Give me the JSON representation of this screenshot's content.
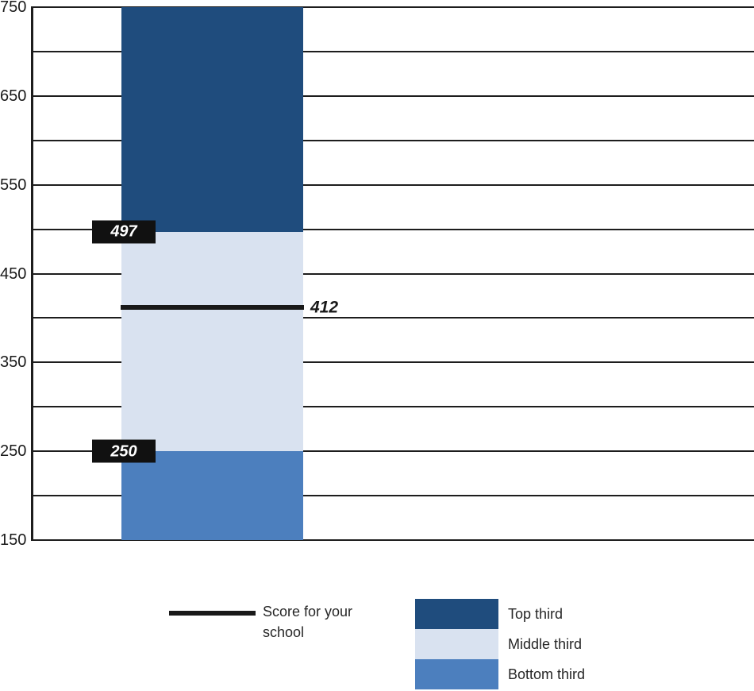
{
  "chart_data": {
    "type": "bar",
    "subtype": "single-stacked-column-with-reference-line",
    "title": "",
    "xlabel": "",
    "ylabel": "",
    "ylim": [
      150,
      750
    ],
    "gridline_step": 50,
    "grid": true,
    "y_ticks": [
      {
        "value": 750,
        "label": "750"
      },
      {
        "value": 650,
        "label": "650"
      },
      {
        "value": 550,
        "label": "550"
      },
      {
        "value": 450,
        "label": "450"
      },
      {
        "value": 350,
        "label": "350"
      },
      {
        "value": 250,
        "label": "250"
      },
      {
        "value": 150,
        "label": "150"
      }
    ],
    "series": [
      {
        "name": "Top third",
        "from": 497,
        "to": 750,
        "color": "#1F4C7D"
      },
      {
        "name": "Middle third",
        "from": 250,
        "to": 497,
        "color": "#D9E2F0"
      },
      {
        "name": "Bottom third",
        "from": 150,
        "to": 250,
        "color": "#4C7FBE"
      }
    ],
    "boundary_labels": [
      {
        "text": "497",
        "value": 497
      },
      {
        "text": "250",
        "value": 250
      }
    ],
    "score_line": {
      "value": 412,
      "label": "412",
      "name": "Score for your school"
    }
  },
  "legend": {
    "position": "bottom",
    "line_item": {
      "label": "Score for your school"
    },
    "items": [
      {
        "label": "Top third",
        "color": "#1F4C7D"
      },
      {
        "label": "Middle third",
        "color": "#D9E2F0"
      },
      {
        "label": "Bottom third",
        "color": "#4C7FBE"
      }
    ]
  },
  "colors": {
    "background": "#FFFFFF",
    "gridline": "#1D1D1D",
    "axis_text": "#1A1A1A",
    "score_line": "#191919",
    "label_box_bg": "#111111",
    "label_box_text": "#FFFFFF",
    "legend_text": "#262626"
  }
}
